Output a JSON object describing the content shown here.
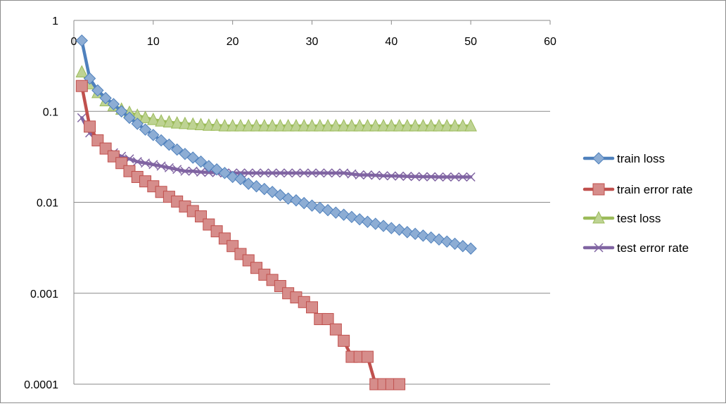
{
  "chart_data": {
    "type": "line",
    "title": "",
    "xlabel": "",
    "ylabel": "",
    "xlim": [
      0,
      60
    ],
    "ylim": [
      0.0001,
      1
    ],
    "y_scale": "log",
    "x_axis_position": "top",
    "x_ticks": [
      0,
      10,
      20,
      30,
      40,
      50,
      60
    ],
    "y_ticks": [
      1,
      0.1,
      0.01,
      0.001,
      0.0001
    ],
    "x_tick_labels": [
      "0",
      "10",
      "20",
      "30",
      "40",
      "50",
      "60"
    ],
    "y_tick_labels": [
      "1",
      "0.1",
      "0.01",
      "0.001",
      "0.0001"
    ],
    "grid": "horizontal",
    "legend_position": "right",
    "series": [
      {
        "name": "train loss",
        "color": "#4f81bd",
        "marker": "diamond",
        "x": [
          1,
          2,
          3,
          4,
          5,
          6,
          7,
          8,
          9,
          10,
          11,
          12,
          13,
          14,
          15,
          16,
          17,
          18,
          19,
          20,
          21,
          22,
          23,
          24,
          25,
          26,
          27,
          28,
          29,
          30,
          31,
          32,
          33,
          34,
          35,
          36,
          37,
          38,
          39,
          40,
          41,
          42,
          43,
          44,
          45,
          46,
          47,
          48,
          49,
          50
        ],
        "values": [
          0.6,
          0.23,
          0.17,
          0.14,
          0.12,
          0.1,
          0.085,
          0.073,
          0.063,
          0.055,
          0.048,
          0.043,
          0.038,
          0.034,
          0.031,
          0.028,
          0.025,
          0.023,
          0.021,
          0.019,
          0.018,
          0.016,
          0.015,
          0.014,
          0.013,
          0.012,
          0.011,
          0.0105,
          0.0098,
          0.0092,
          0.0087,
          0.0082,
          0.0077,
          0.0073,
          0.0069,
          0.0065,
          0.0061,
          0.0058,
          0.0055,
          0.0052,
          0.005,
          0.0047,
          0.0045,
          0.0043,
          0.0041,
          0.0039,
          0.0037,
          0.0035,
          0.0033,
          0.0031
        ]
      },
      {
        "name": "train error rate",
        "color": "#c0504d",
        "marker": "square",
        "x": [
          1,
          2,
          3,
          4,
          5,
          6,
          7,
          8,
          9,
          10,
          11,
          12,
          13,
          14,
          15,
          16,
          17,
          18,
          19,
          20,
          21,
          22,
          23,
          24,
          25,
          26,
          27,
          28,
          29,
          30,
          31,
          32,
          33,
          34,
          35,
          36,
          37,
          38,
          39,
          40,
          41
        ],
        "values": [
          0.19,
          0.068,
          0.048,
          0.039,
          0.032,
          0.027,
          0.022,
          0.019,
          0.017,
          0.015,
          0.013,
          0.0115,
          0.0102,
          0.009,
          0.008,
          0.007,
          0.0057,
          0.0048,
          0.004,
          0.0033,
          0.0027,
          0.0023,
          0.0019,
          0.0016,
          0.0014,
          0.0012,
          0.001,
          0.0009,
          0.0008,
          0.0007,
          0.00052,
          0.00052,
          0.0004,
          0.0003,
          0.0002,
          0.0002,
          0.0002,
          0.0001,
          0.0001,
          0.0001,
          0.0001
        ]
      },
      {
        "name": "test loss",
        "color": "#9bbb59",
        "marker": "triangle",
        "x": [
          1,
          2,
          3,
          4,
          5,
          6,
          7,
          8,
          9,
          10,
          11,
          12,
          13,
          14,
          15,
          16,
          17,
          18,
          19,
          20,
          21,
          22,
          23,
          24,
          25,
          26,
          27,
          28,
          29,
          30,
          31,
          32,
          33,
          34,
          35,
          36,
          37,
          38,
          39,
          40,
          41,
          42,
          43,
          44,
          45,
          46,
          47,
          48,
          49,
          50
        ],
        "values": [
          0.27,
          0.2,
          0.16,
          0.13,
          0.115,
          0.105,
          0.097,
          0.09,
          0.085,
          0.081,
          0.078,
          0.076,
          0.074,
          0.073,
          0.072,
          0.071,
          0.07,
          0.07,
          0.069,
          0.069,
          0.069,
          0.069,
          0.069,
          0.069,
          0.069,
          0.069,
          0.069,
          0.069,
          0.069,
          0.069,
          0.069,
          0.069,
          0.069,
          0.069,
          0.069,
          0.069,
          0.069,
          0.069,
          0.069,
          0.069,
          0.069,
          0.069,
          0.069,
          0.069,
          0.069,
          0.069,
          0.069,
          0.069,
          0.069,
          0.069
        ]
      },
      {
        "name": "test error rate",
        "color": "#8064a2",
        "marker": "x",
        "x": [
          1,
          2,
          3,
          4,
          5,
          6,
          7,
          8,
          9,
          10,
          11,
          12,
          13,
          14,
          15,
          16,
          17,
          18,
          19,
          20,
          21,
          22,
          23,
          24,
          25,
          26,
          27,
          28,
          29,
          30,
          31,
          32,
          33,
          34,
          35,
          36,
          37,
          38,
          39,
          40,
          41,
          42,
          43,
          44,
          45,
          46,
          47,
          48,
          49,
          50
        ],
        "values": [
          0.085,
          0.058,
          0.047,
          0.04,
          0.035,
          0.032,
          0.03,
          0.028,
          0.027,
          0.026,
          0.025,
          0.024,
          0.023,
          0.022,
          0.022,
          0.0215,
          0.0213,
          0.0212,
          0.021,
          0.021,
          0.021,
          0.021,
          0.021,
          0.021,
          0.021,
          0.021,
          0.021,
          0.021,
          0.021,
          0.021,
          0.021,
          0.021,
          0.021,
          0.021,
          0.0205,
          0.02,
          0.02,
          0.0198,
          0.0196,
          0.0195,
          0.0194,
          0.0193,
          0.0192,
          0.0191,
          0.0191,
          0.019,
          0.019,
          0.019,
          0.019,
          0.019
        ]
      }
    ]
  }
}
